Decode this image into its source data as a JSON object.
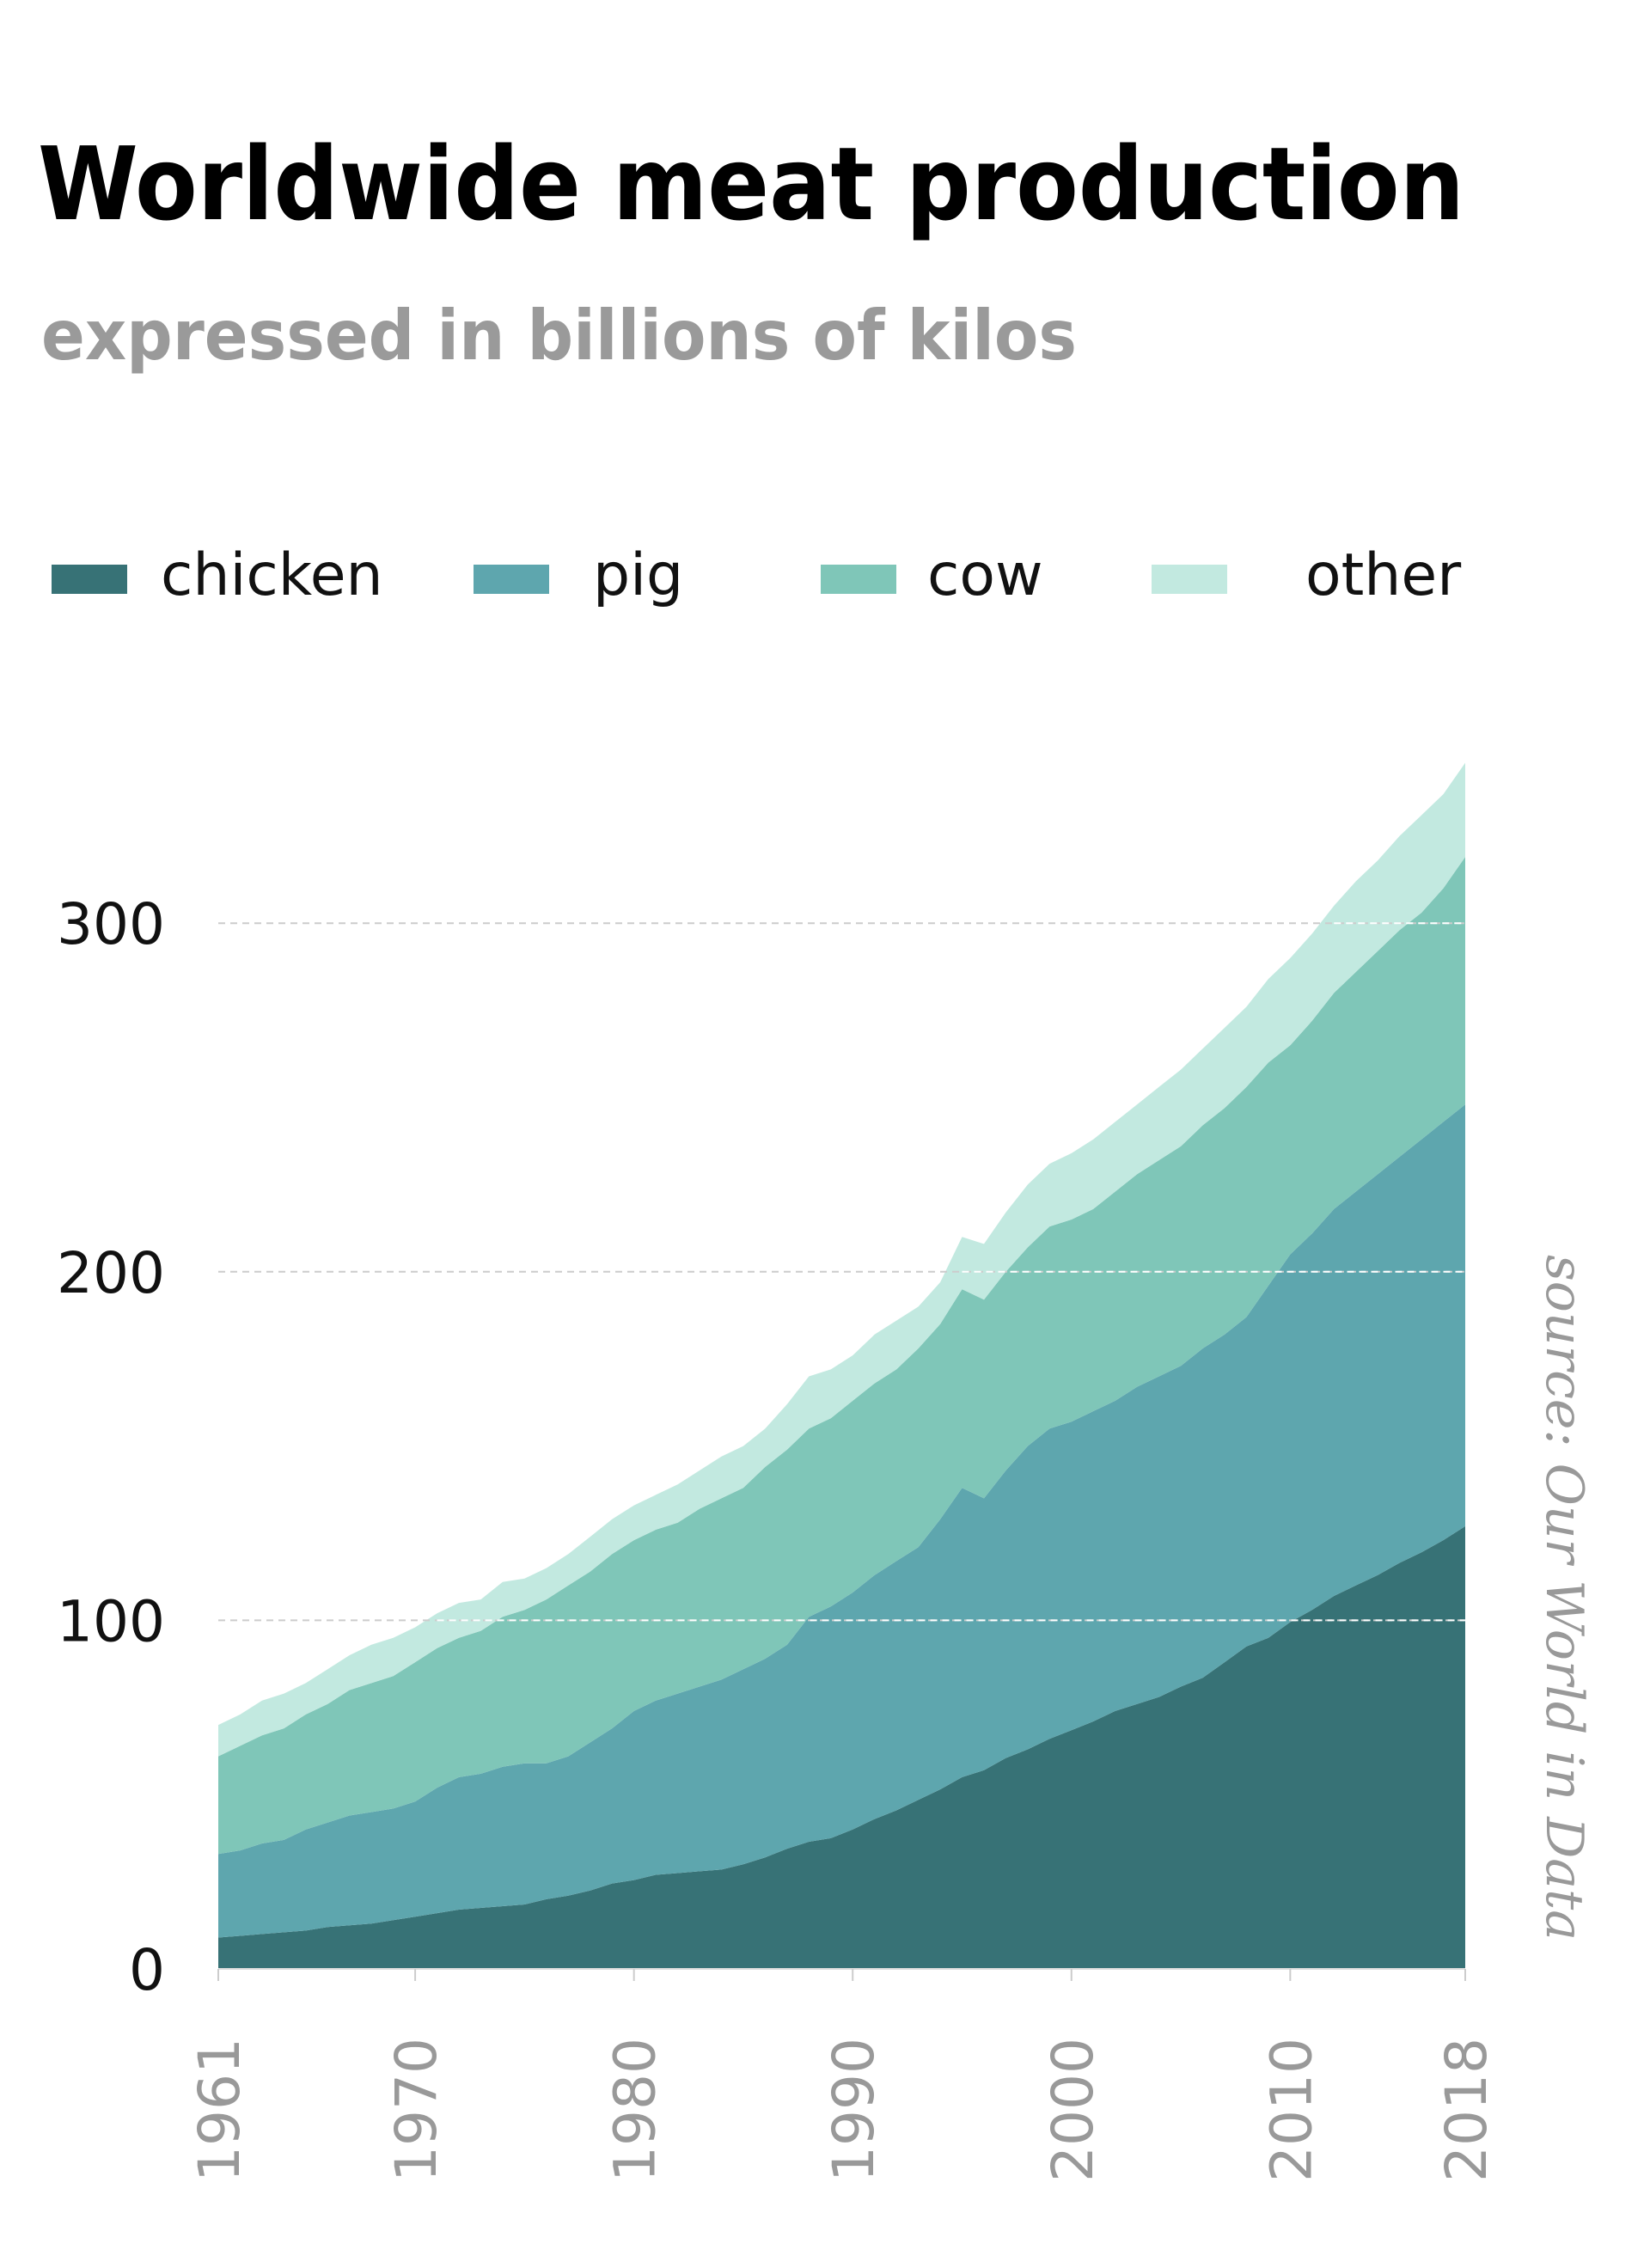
{
  "chart_data": {
    "type": "area",
    "stacked": true,
    "title": "Worldwide meat production",
    "subtitle": "expressed in billions of kilos",
    "xlabel": "",
    "ylabel": "",
    "source": "source: Our World in Data",
    "xlim": [
      1961,
      2018
    ],
    "ylim": [
      0,
      346
    ],
    "x_ticks": [
      1961,
      1970,
      1980,
      1990,
      2000,
      2010,
      2018
    ],
    "y_ticks": [
      0,
      100,
      200,
      300
    ],
    "grid": "horizontal dashed",
    "legend_position": "top",
    "x": [
      1961,
      1962,
      1963,
      1964,
      1965,
      1966,
      1967,
      1968,
      1969,
      1970,
      1971,
      1972,
      1973,
      1974,
      1975,
      1976,
      1977,
      1978,
      1979,
      1980,
      1981,
      1982,
      1983,
      1984,
      1985,
      1986,
      1987,
      1988,
      1989,
      1990,
      1991,
      1992,
      1993,
      1994,
      1995,
      1996,
      1997,
      1998,
      1999,
      2000,
      2001,
      2002,
      2003,
      2004,
      2005,
      2006,
      2007,
      2008,
      2009,
      2010,
      2011,
      2012,
      2013,
      2014,
      2015,
      2016,
      2017,
      2018
    ],
    "series": [
      {
        "name": "chicken",
        "color": "#377276",
        "values": [
          9,
          9.5,
          10,
          10.5,
          11,
          12,
          12.5,
          13,
          14,
          15,
          16,
          17,
          17.5,
          18,
          18.5,
          20,
          21,
          22.5,
          24.5,
          25.5,
          27,
          27.5,
          28,
          28.5,
          30,
          32,
          34.5,
          36.5,
          37.5,
          40,
          43,
          45.5,
          48.5,
          51.5,
          55,
          57,
          60.5,
          63,
          66,
          68.5,
          71,
          74,
          76,
          78,
          81,
          83.5,
          88,
          92.5,
          95,
          99.5,
          103,
          107,
          110,
          113,
          116.5,
          119.5,
          123,
          127
        ]
      },
      {
        "name": "pig",
        "color": "#5ea6ae",
        "values": [
          24,
          24.5,
          26,
          26.5,
          29,
          30,
          31.5,
          32,
          32,
          33,
          36,
          38,
          38.5,
          40,
          40.5,
          39,
          40,
          42.5,
          44.5,
          48.5,
          50,
          51.5,
          53,
          54.5,
          56,
          57,
          58.5,
          64.5,
          66.5,
          68,
          70,
          71.5,
          72.5,
          77.5,
          83,
          78,
          82.5,
          87,
          89,
          88.5,
          89,
          89,
          91,
          92,
          92,
          94.5,
          94,
          94.5,
          101,
          105.5,
          108,
          111,
          113,
          115,
          116.5,
          118.5,
          120,
          121
        ]
      },
      {
        "name": "cow",
        "color": "#7fc6b8",
        "values": [
          28,
          30,
          31,
          32,
          33,
          34,
          36,
          37,
          38,
          40,
          40,
          40,
          41,
          43,
          44,
          47,
          49,
          49,
          50,
          49,
          49,
          49,
          51,
          52,
          52,
          55,
          56,
          54,
          54,
          55,
          55,
          55,
          57,
          56,
          57,
          57,
          57,
          57,
          58,
          58,
          58,
          60,
          61,
          62,
          63,
          64,
          65,
          66,
          64,
          60,
          61,
          62,
          63,
          64,
          65,
          65,
          67,
          71
        ]
      },
      {
        "name": "other",
        "color": "#c2e9e0",
        "values": [
          9,
          9,
          10,
          10,
          9,
          10,
          10,
          11,
          11,
          10,
          10,
          10,
          9,
          10,
          9,
          9,
          9,
          10,
          10,
          10,
          10,
          11,
          11,
          12,
          12,
          11,
          13,
          15,
          14,
          13,
          14,
          14,
          12,
          12,
          15,
          16,
          17,
          18,
          18,
          19,
          20,
          20,
          20,
          21,
          22,
          22,
          23,
          23,
          24,
          25,
          25,
          25,
          26,
          26,
          27,
          28,
          27,
          27
        ]
      }
    ]
  }
}
